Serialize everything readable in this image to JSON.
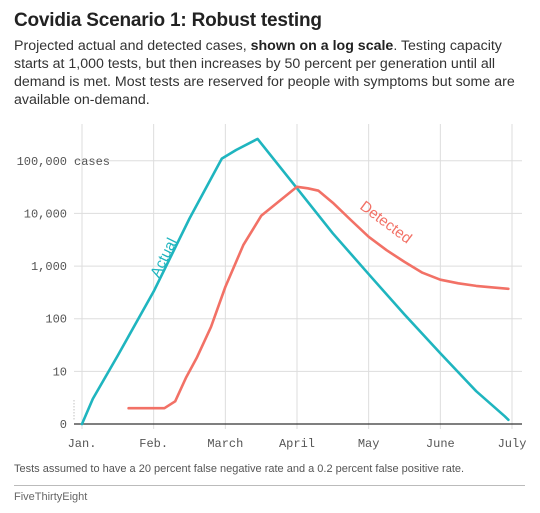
{
  "header": {
    "title": "Covidia Scenario 1: Robust testing",
    "subtitle_pre": "Projected actual and detected cases, ",
    "subtitle_bold": "shown on a log scale",
    "subtitle_post": ". Testing capacity starts at 1,000 tests, but then increases by 50 percent per generation until all demand is met. Most tests are reserved for people with symptoms but some are available on-demand."
  },
  "chart_data": {
    "type": "line",
    "title": "Covidia Scenario 1: Robust testing",
    "y_scale": "log",
    "ylim": [
      1,
      500000
    ],
    "y_ticks": [
      {
        "value": 1,
        "label": "0"
      },
      {
        "value": 10,
        "label": "10"
      },
      {
        "value": 100,
        "label": "100"
      },
      {
        "value": 1000,
        "label": "1,000"
      },
      {
        "value": 10000,
        "label": "10,000"
      },
      {
        "value": 100000,
        "label": "100,000"
      }
    ],
    "y_unit_label": "cases",
    "x_ticks": [
      "Jan.",
      "Feb.",
      "March",
      "April",
      "May",
      "June",
      "July"
    ],
    "x_range_months": [
      0,
      6.1
    ],
    "grid": true,
    "series": [
      {
        "name": "Actual",
        "color": "#1fb5bf",
        "points": [
          [
            0,
            1
          ],
          [
            0.15,
            3
          ],
          [
            0.5,
            20
          ],
          [
            1,
            330
          ],
          [
            1.5,
            8000
          ],
          [
            1.95,
            110000
          ],
          [
            2.15,
            160000
          ],
          [
            2.45,
            260000
          ],
          [
            3,
            30000
          ],
          [
            3.5,
            4200
          ],
          [
            4,
            700
          ],
          [
            4.5,
            120
          ],
          [
            5,
            22
          ],
          [
            5.5,
            4.2
          ],
          [
            5.9,
            1.4
          ],
          [
            5.95,
            1.2
          ]
        ]
      },
      {
        "name": "Detected",
        "color": "#f27166",
        "points": [
          [
            0.65,
            2
          ],
          [
            0.8,
            2
          ],
          [
            1.15,
            2
          ],
          [
            1.3,
            2.7
          ],
          [
            1.45,
            7.5
          ],
          [
            1.6,
            18
          ],
          [
            1.8,
            70
          ],
          [
            2,
            400
          ],
          [
            2.25,
            2500
          ],
          [
            2.5,
            9000
          ],
          [
            2.75,
            17000
          ],
          [
            3,
            32000
          ],
          [
            3.15,
            30000
          ],
          [
            3.3,
            27000
          ],
          [
            3.5,
            16000
          ],
          [
            3.75,
            7500
          ],
          [
            4,
            3600
          ],
          [
            4.25,
            2000
          ],
          [
            4.5,
            1200
          ],
          [
            4.75,
            750
          ],
          [
            5,
            550
          ],
          [
            5.25,
            470
          ],
          [
            5.5,
            420
          ],
          [
            5.75,
            390
          ],
          [
            5.95,
            370
          ]
        ]
      }
    ]
  },
  "footnote": "Tests assumed to have a 20 percent false negative rate and a 0.2 percent false positive rate.",
  "source": "FiveThirtyEight"
}
